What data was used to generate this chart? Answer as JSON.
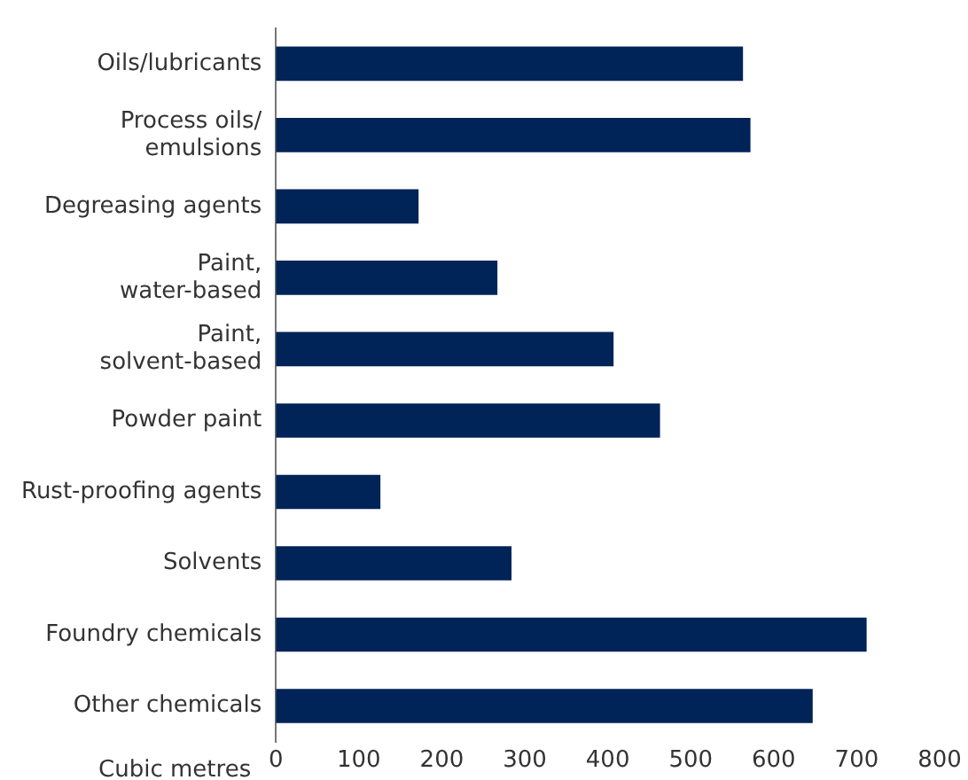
{
  "chart_data": {
    "type": "bar",
    "orientation": "horizontal",
    "xlabel": "Cubic metres",
    "categories": [
      "Oils/lubricants",
      "Process oils/\nemulsions",
      "Degreasing agents",
      "Paint,\nwater-based",
      "Paint,\nsolvent-based",
      "Powder paint",
      "Rust-proofing agents",
      "Solvents",
      "Foundry chemicals",
      "Other chemicals"
    ],
    "values": [
      563,
      572,
      172,
      267,
      407,
      463,
      126,
      284,
      712,
      647
    ],
    "color": "#002358",
    "xlim": [
      0,
      800
    ],
    "xticks": [
      0,
      100,
      200,
      300,
      400,
      500,
      600,
      700,
      800
    ],
    "grid": false,
    "legend": false
  }
}
